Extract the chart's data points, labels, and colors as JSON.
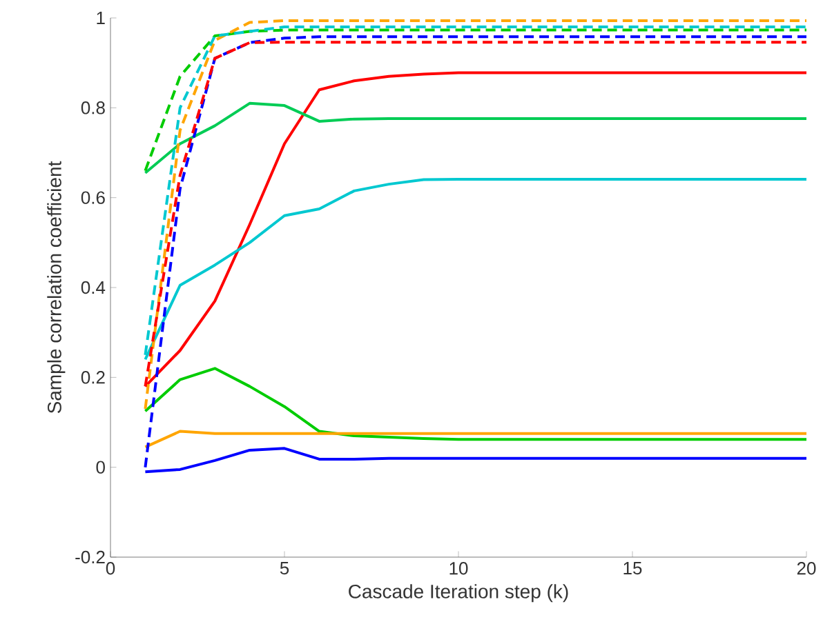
{
  "chart_data": {
    "type": "line",
    "xlabel": "Cascade Iteration step (k)",
    "ylabel": "Sample correlation coefficient",
    "x": [
      1,
      2,
      3,
      4,
      5,
      6,
      7,
      8,
      9,
      10,
      11,
      12,
      13,
      14,
      15,
      16,
      17,
      18,
      19,
      20
    ],
    "xlim": [
      0,
      20
    ],
    "xticks": [
      0,
      5,
      10,
      15,
      20
    ],
    "ylim": [
      -0.2,
      1
    ],
    "yticks": [
      -0.2,
      0,
      0.2,
      0.4,
      0.6,
      0.8,
      1
    ],
    "grid": false,
    "marker": "none",
    "series": [
      {
        "color": "#ff0000",
        "line_style": "solid",
        "values": [
          0.18,
          0.26,
          0.37,
          0.54,
          0.72,
          0.84,
          0.86,
          0.87,
          0.875,
          0.878,
          0.878,
          0.878,
          0.878,
          0.878,
          0.878,
          0.878,
          0.878,
          0.878,
          0.878,
          0.878
        ]
      },
      {
        "color": "#00cc55",
        "line_style": "solid",
        "values": [
          0.655,
          0.72,
          0.76,
          0.81,
          0.805,
          0.77,
          0.775,
          0.776,
          0.776,
          0.776,
          0.776,
          0.776,
          0.776,
          0.776,
          0.776,
          0.776,
          0.776,
          0.776,
          0.776,
          0.776
        ]
      },
      {
        "color": "#00c8d0",
        "line_style": "solid",
        "values": [
          0.24,
          0.405,
          0.45,
          0.5,
          0.56,
          0.575,
          0.615,
          0.63,
          0.64,
          0.641,
          0.641,
          0.641,
          0.641,
          0.641,
          0.641,
          0.641,
          0.641,
          0.641,
          0.641,
          0.641
        ]
      },
      {
        "color": "#00cc00",
        "line_style": "solid",
        "values": [
          0.125,
          0.195,
          0.22,
          0.18,
          0.135,
          0.08,
          0.07,
          0.067,
          0.064,
          0.062,
          0.062,
          0.062,
          0.062,
          0.062,
          0.062,
          0.062,
          0.062,
          0.062,
          0.062,
          0.062
        ]
      },
      {
        "color": "#ffa500",
        "line_style": "solid",
        "values": [
          0.045,
          0.08,
          0.075,
          0.075,
          0.075,
          0.075,
          0.075,
          0.075,
          0.075,
          0.075,
          0.075,
          0.075,
          0.075,
          0.075,
          0.075,
          0.075,
          0.075,
          0.075,
          0.075,
          0.075
        ]
      },
      {
        "color": "#0000ff",
        "line_style": "solid",
        "values": [
          -0.01,
          -0.005,
          0.015,
          0.038,
          0.042,
          0.018,
          0.018,
          0.02,
          0.02,
          0.02,
          0.02,
          0.02,
          0.02,
          0.02,
          0.02,
          0.02,
          0.02,
          0.02,
          0.02,
          0.02
        ]
      },
      {
        "color": "#00cc00",
        "line_style": "dashed",
        "values": [
          0.66,
          0.87,
          0.96,
          0.97,
          0.973,
          0.973,
          0.973,
          0.973,
          0.973,
          0.973,
          0.973,
          0.973,
          0.973,
          0.973,
          0.973,
          0.973,
          0.973,
          0.973,
          0.973,
          0.973
        ]
      },
      {
        "color": "#ffa500",
        "line_style": "dashed",
        "values": [
          0.13,
          0.75,
          0.95,
          0.99,
          0.994,
          0.994,
          0.994,
          0.994,
          0.994,
          0.994,
          0.994,
          0.994,
          0.994,
          0.994,
          0.994,
          0.994,
          0.994,
          0.994,
          0.994,
          0.994
        ]
      },
      {
        "color": "#00c8d0",
        "line_style": "dashed",
        "values": [
          0.25,
          0.8,
          0.96,
          0.97,
          0.98,
          0.98,
          0.98,
          0.98,
          0.98,
          0.98,
          0.98,
          0.98,
          0.98,
          0.98,
          0.98,
          0.98,
          0.98,
          0.98,
          0.98,
          0.98
        ]
      },
      {
        "color": "#0000ff",
        "line_style": "dashed",
        "values": [
          0.0,
          0.62,
          0.91,
          0.945,
          0.955,
          0.958,
          0.958,
          0.958,
          0.958,
          0.958,
          0.958,
          0.958,
          0.958,
          0.958,
          0.958,
          0.958,
          0.958,
          0.958,
          0.958,
          0.958
        ]
      },
      {
        "color": "#ff0000",
        "line_style": "dashed",
        "values": [
          0.18,
          0.65,
          0.91,
          0.945,
          0.946,
          0.946,
          0.946,
          0.946,
          0.946,
          0.946,
          0.946,
          0.946,
          0.946,
          0.946,
          0.946,
          0.946,
          0.946,
          0.946,
          0.946,
          0.946
        ]
      }
    ]
  }
}
